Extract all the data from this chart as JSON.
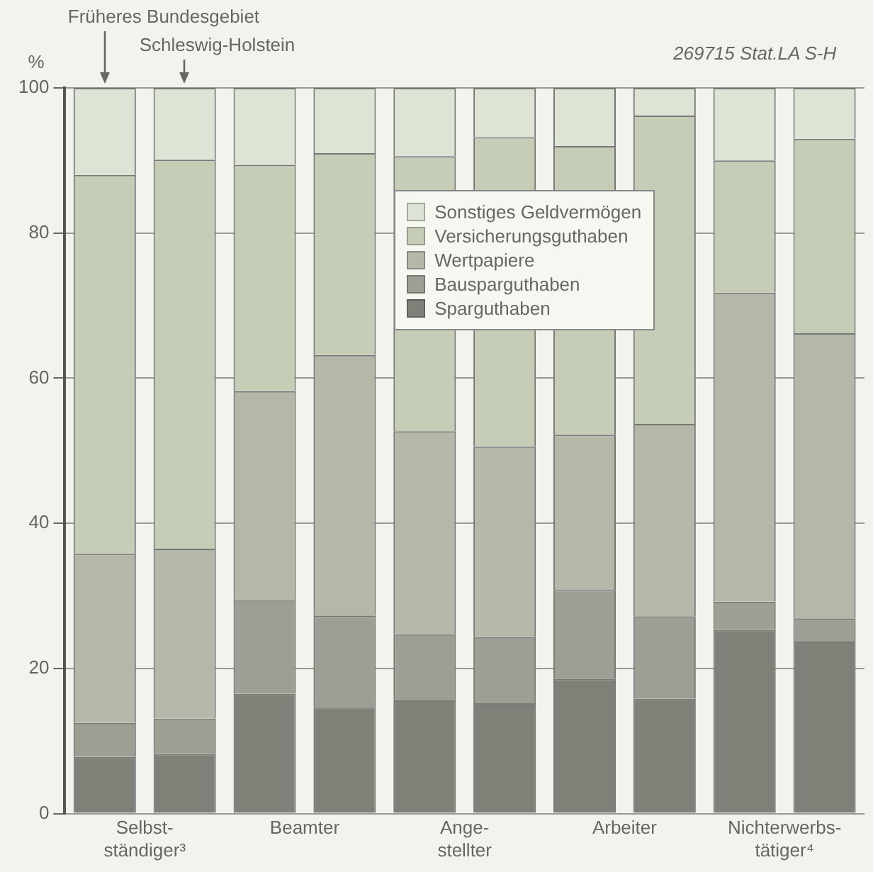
{
  "chart_data": {
    "type": "bar",
    "stacked": true,
    "ylabel": "%",
    "categories": [
      "Selbst-\nständiger³",
      null,
      "Beamter",
      null,
      "Ange-\nstellter",
      null,
      "Arbeiter",
      null,
      "Nichterwerbs-\ntätiger⁴",
      null
    ],
    "series": [
      {
        "name": "Sparguthaben",
        "color": "#808078",
        "values": [
          7.8,
          8.2,
          16.5,
          14.7,
          15.6,
          15.2,
          18.6,
          15.8,
          25.3,
          23.7
        ]
      },
      {
        "name": "Bausparguthaben",
        "color": "#9c9f93",
        "values": [
          4.7,
          4.9,
          12.9,
          12.6,
          9.1,
          9.1,
          12.2,
          11.4,
          3.9,
          3.2
        ]
      },
      {
        "name": "Wertpapiere",
        "color": "#b4b8a8",
        "values": [
          23.3,
          23.4,
          28.8,
          35.9,
          28.0,
          26.3,
          21.4,
          26.5,
          42.6,
          39.3
        ]
      },
      {
        "name": "Versicherungsguthaben",
        "color": "#c6cdb6",
        "values": [
          52.2,
          53.6,
          31.2,
          27.8,
          37.9,
          42.6,
          39.8,
          42.5,
          18.2,
          26.8
        ]
      },
      {
        "name": "Sonstiges Geldvermögen",
        "color": "#dde3d5",
        "values": [
          12.0,
          9.9,
          10.6,
          9.0,
          9.4,
          6.8,
          8.0,
          3.8,
          10.0,
          7.0
        ]
      }
    ],
    "ylim": [
      0,
      100
    ],
    "yticks": [
      0,
      20,
      40,
      60,
      80,
      100
    ],
    "grid": "y",
    "legend": "top right",
    "annotations": [
      "Früheres Bundesgebiet",
      "Schleswig-Holstein",
      "269715 Stat.LA S-H"
    ]
  }
}
